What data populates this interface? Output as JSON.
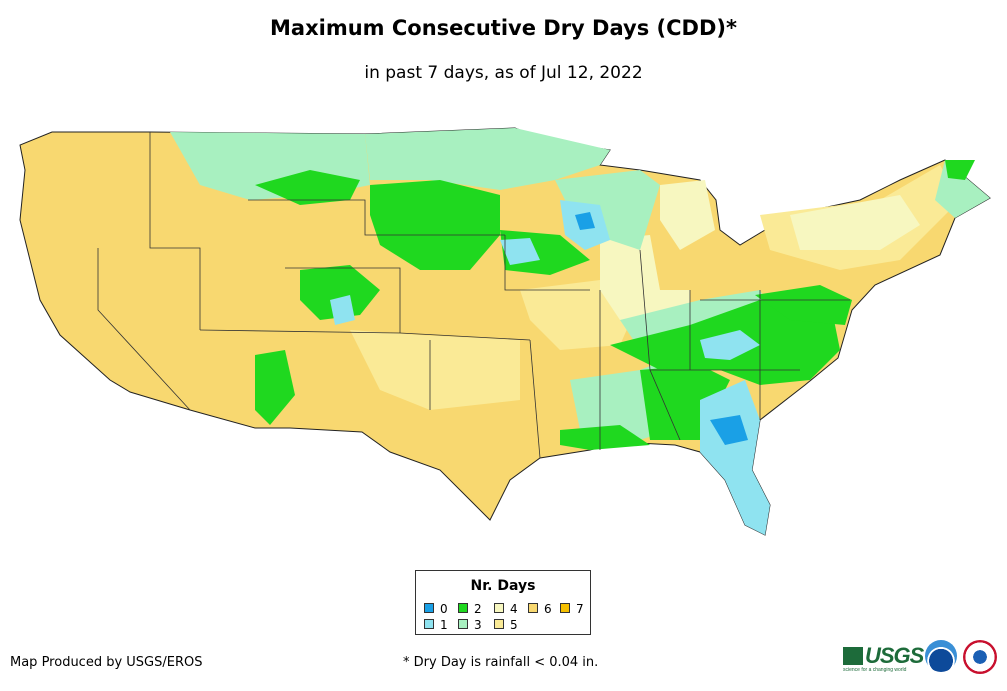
{
  "title": "Maximum Consecutive Dry Days (CDD)*",
  "subtitle": "in past 7 days, as of Jul 12, 2022",
  "legend": {
    "title": "Nr. Days",
    "items": [
      {
        "label": "0",
        "color": "#1aa0e6"
      },
      {
        "label": "1",
        "color": "#8fe3f0"
      },
      {
        "label": "2",
        "color": "#1fd81f"
      },
      {
        "label": "3",
        "color": "#a8f0c0"
      },
      {
        "label": "4",
        "color": "#f7f7c0"
      },
      {
        "label": "5",
        "color": "#faea96"
      },
      {
        "label": "6",
        "color": "#f8d870"
      },
      {
        "label": "7",
        "color": "#f5c000"
      }
    ]
  },
  "credit": "Map Produced by USGS/EROS",
  "footnote": "* Dry Day is rainfall < 0.04 in.",
  "logos": {
    "usgs": "USGS",
    "usgs_tagline": "science for a changing world",
    "noaa": "noaa-logo",
    "nws": "nws-logo"
  }
}
